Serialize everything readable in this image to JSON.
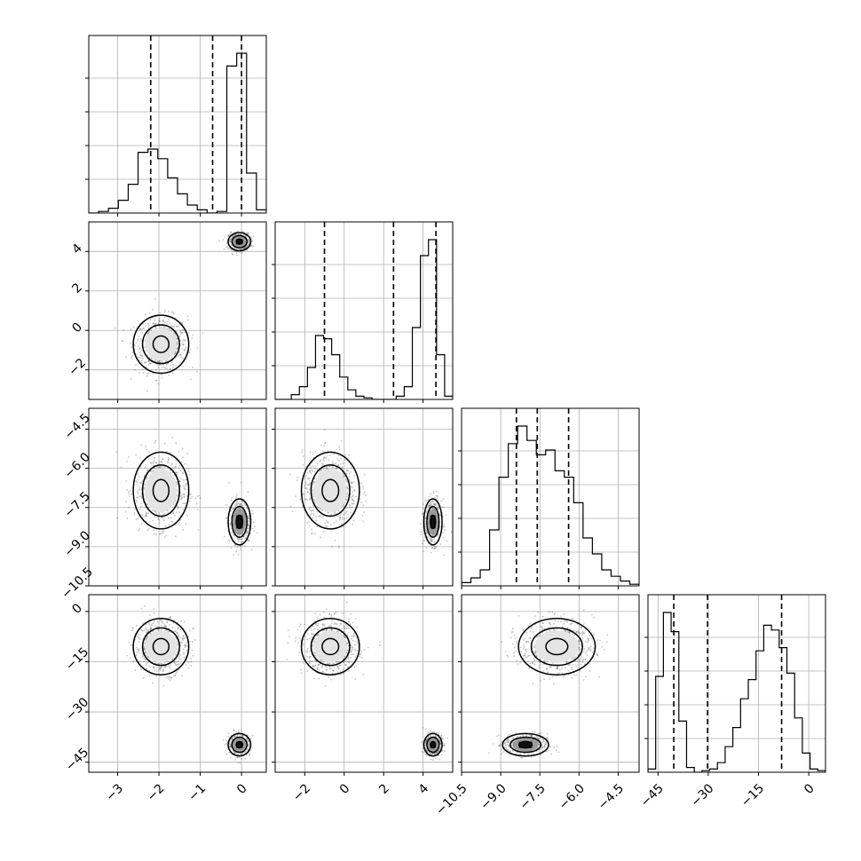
{
  "figure": {
    "type": "corner_plot",
    "dimensions": 4,
    "colors": {
      "line": "#000000",
      "grid": "#b0b0b0",
      "scatter": "#555555",
      "background": "#ffffff"
    }
  },
  "chart_data": {
    "type": "corner",
    "params": [
      {
        "range": [
          -3.7,
          0.6
        ],
        "ticks": [
          -3,
          -2,
          -1,
          0
        ],
        "tick_labels": [
          "−3",
          "−2",
          "−1",
          "0"
        ],
        "quantiles": [
          -2.2,
          -0.7,
          0.0
        ]
      },
      {
        "range": [
          -3.5,
          5.5
        ],
        "ticks": [
          -2,
          0,
          2,
          4
        ],
        "tick_labels": [
          "−2",
          "0",
          "2",
          "4"
        ],
        "quantiles": [
          -1.0,
          2.5,
          4.65
        ]
      },
      {
        "range": [
          -10.5,
          -3.7
        ],
        "ticks": [
          -10.5,
          -9.0,
          -7.5,
          -6.0,
          -4.5
        ],
        "tick_labels": [
          "−10.5",
          "−9.0",
          "−7.5",
          "−6.0",
          "−4.5"
        ],
        "quantiles": [
          -8.4,
          -7.6,
          -6.4
        ]
      },
      {
        "range": [
          -48,
          5
        ],
        "ticks": [
          -45,
          -30,
          -15,
          0
        ],
        "tick_labels": [
          "−45",
          "−30",
          "−15",
          "0"
        ],
        "quantiles": [
          -40.3,
          -30.2,
          -8.1
        ]
      }
    ],
    "histograms": [
      [
        0,
        1,
        3,
        8,
        18,
        38,
        40,
        34,
        22,
        12,
        5,
        2,
        0,
        1,
        92,
        100,
        25,
        2
      ],
      [
        0,
        0,
        3,
        8,
        20,
        40,
        38,
        28,
        14,
        6,
        2,
        1,
        0,
        0,
        0,
        2,
        8,
        45,
        90,
        100,
        28,
        2
      ],
      [
        2,
        5,
        10,
        35,
        68,
        89,
        100,
        91,
        82,
        85,
        72,
        68,
        52,
        30,
        20,
        10,
        6,
        3,
        1
      ],
      [
        2,
        60,
        100,
        88,
        32,
        3,
        0,
        1,
        2,
        6,
        16,
        28,
        46,
        58,
        76,
        92,
        89,
        78,
        62,
        34,
        12,
        2,
        1
      ]
    ],
    "clusters": [
      {
        "center": [
          -1.95,
          -0.7,
          -6.85,
          -10.5
        ],
        "sd": [
          0.32,
          0.7,
          0.7,
          4.0
        ]
      },
      {
        "center": [
          -0.05,
          4.5,
          -8.05,
          -39.8
        ],
        "sd": [
          0.13,
          0.22,
          0.42,
          1.6
        ]
      }
    ]
  }
}
